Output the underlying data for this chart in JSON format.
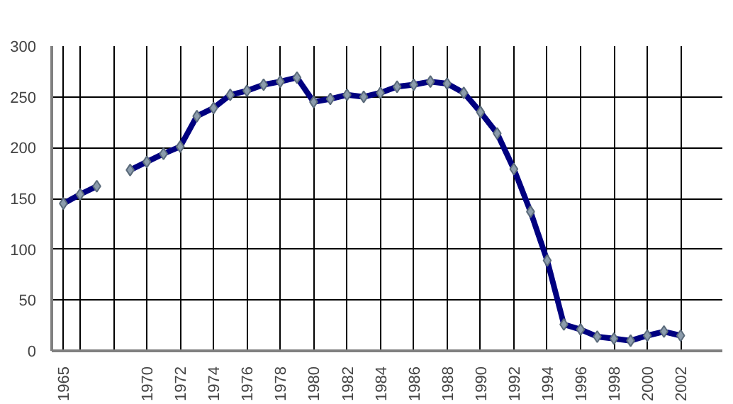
{
  "chart_data": {
    "type": "line",
    "x": [
      1965,
      1966,
      1967,
      1968,
      1969,
      1970,
      1971,
      1972,
      1973,
      1974,
      1975,
      1976,
      1977,
      1978,
      1979,
      1980,
      1981,
      1982,
      1983,
      1984,
      1985,
      1986,
      1987,
      1988,
      1989,
      1990,
      1991,
      1992,
      1993,
      1994,
      1995,
      1996,
      1997,
      1998,
      1999,
      2000,
      2001,
      2002
    ],
    "series": [
      {
        "color": "#000080",
        "values": [
          145,
          154,
          162,
          null,
          178,
          186,
          194,
          201,
          231,
          239,
          252,
          256,
          262,
          265,
          269,
          245,
          248,
          252,
          250,
          254,
          260,
          262,
          265,
          263,
          254,
          235,
          214,
          179,
          137,
          89,
          26,
          21,
          14,
          12,
          10,
          15,
          19,
          15
        ]
      }
    ],
    "xlim": [
      1964.3,
      2004.5
    ],
    "xticks": [
      1965,
      {
        "value": 1966,
        "label": null
      },
      {
        "value": 1968,
        "label": null
      },
      1970,
      1972,
      1974,
      1976,
      1978,
      1980,
      1982,
      1984,
      1986,
      1988,
      1990,
      1992,
      1994,
      1996,
      1998,
      2000,
      2002
    ],
    "ylim": [
      0,
      300
    ],
    "yticks": [
      0,
      50,
      100,
      150,
      200,
      250,
      300
    ],
    "grid": true,
    "marker": "diamond",
    "line_style": "solid"
  }
}
